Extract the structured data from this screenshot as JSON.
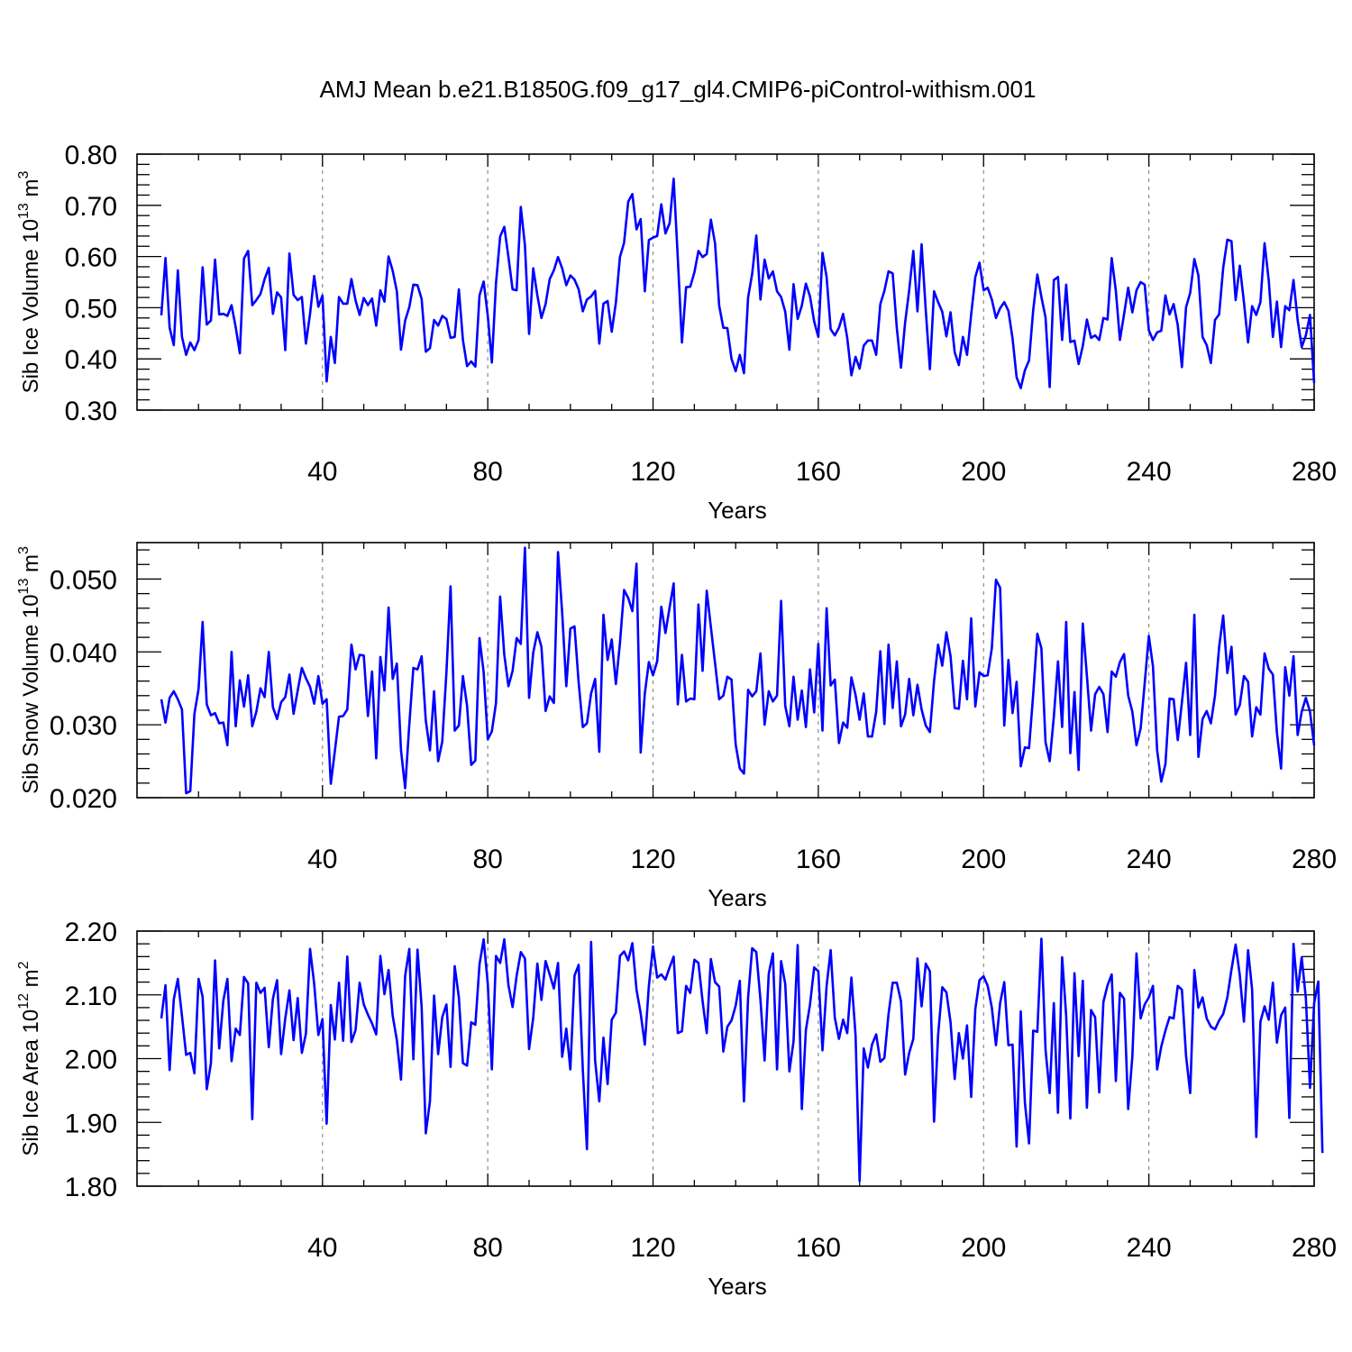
{
  "title": "AMJ Mean b.e21.B1850G.f09_g17_gl4.CMIP6-piControl-withism.001",
  "line_color": "#0000ff",
  "chart_data": [
    {
      "type": "line",
      "title": "AMJ Mean b.e21.B1850G.f09_g17_gl4.CMIP6-piControl-withism.001",
      "xlabel": "Years",
      "ylabel": {
        "text": "Sib Ice Volume 10",
        "exp": "13",
        "unit": " m",
        "unit_exp": "3"
      },
      "xlim": [
        1,
        280
      ],
      "ylim": [
        0.3,
        0.8
      ],
      "xticks": [
        40,
        80,
        120,
        160,
        200,
        240,
        280
      ],
      "yticks": [
        "0.30",
        "0.40",
        "0.50",
        "0.60",
        "0.70",
        "0.80"
      ],
      "grid": "vertical dashed at x ticks",
      "x_start": 1,
      "values": [
        0.485,
        0.597,
        0.461,
        0.427,
        0.573,
        0.443,
        0.408,
        0.432,
        0.417,
        0.437,
        0.579,
        0.467,
        0.475,
        0.594,
        0.487,
        0.488,
        0.484,
        0.505,
        0.462,
        0.411,
        0.596,
        0.611,
        0.505,
        0.515,
        0.527,
        0.556,
        0.578,
        0.488,
        0.53,
        0.52,
        0.417,
        0.606,
        0.525,
        0.515,
        0.521,
        0.43,
        0.488,
        0.562,
        0.502,
        0.524,
        0.356,
        0.443,
        0.392,
        0.521,
        0.508,
        0.508,
        0.556,
        0.514,
        0.486,
        0.519,
        0.505,
        0.518,
        0.465,
        0.534,
        0.512,
        0.6,
        0.572,
        0.532,
        0.418,
        0.475,
        0.501,
        0.545,
        0.544,
        0.517,
        0.414,
        0.421,
        0.476,
        0.465,
        0.484,
        0.478,
        0.441,
        0.443,
        0.536,
        0.437,
        0.386,
        0.395,
        0.385,
        0.524,
        0.551,
        0.484,
        0.393,
        0.548,
        0.639,
        0.658,
        0.599,
        0.536,
        0.534,
        0.697,
        0.622,
        0.449,
        0.577,
        0.524,
        0.48,
        0.507,
        0.556,
        0.573,
        0.599,
        0.577,
        0.544,
        0.563,
        0.555,
        0.536,
        0.493,
        0.516,
        0.522,
        0.533,
        0.43,
        0.508,
        0.513,
        0.453,
        0.51,
        0.599,
        0.627,
        0.707,
        0.722,
        0.653,
        0.673,
        0.532,
        0.632,
        0.637,
        0.64,
        0.702,
        0.645,
        0.665,
        0.752,
        0.597,
        0.432,
        0.54,
        0.541,
        0.569,
        0.611,
        0.599,
        0.605,
        0.672,
        0.626,
        0.504,
        0.461,
        0.46,
        0.4,
        0.376,
        0.408,
        0.372,
        0.52,
        0.566,
        0.641,
        0.516,
        0.594,
        0.557,
        0.571,
        0.532,
        0.521,
        0.492,
        0.418,
        0.546,
        0.478,
        0.504,
        0.547,
        0.522,
        0.473,
        0.443,
        0.607,
        0.56,
        0.458,
        0.446,
        0.461,
        0.488,
        0.441,
        0.368,
        0.404,
        0.381,
        0.426,
        0.436,
        0.436,
        0.408,
        0.507,
        0.533,
        0.571,
        0.567,
        0.46,
        0.383,
        0.471,
        0.534,
        0.611,
        0.493,
        0.624,
        0.495,
        0.38,
        0.532,
        0.511,
        0.492,
        0.444,
        0.491,
        0.413,
        0.388,
        0.443,
        0.408,
        0.487,
        0.56,
        0.588,
        0.534,
        0.539,
        0.516,
        0.48,
        0.499,
        0.511,
        0.494,
        0.44,
        0.364,
        0.343,
        0.378,
        0.397,
        0.495,
        0.565,
        0.521,
        0.481,
        0.345,
        0.554,
        0.56,
        0.437,
        0.545,
        0.433,
        0.436,
        0.39,
        0.425,
        0.477,
        0.441,
        0.446,
        0.437,
        0.48,
        0.477,
        0.597,
        0.533,
        0.437,
        0.487,
        0.539,
        0.491,
        0.534,
        0.55,
        0.545,
        0.456,
        0.437,
        0.452,
        0.455,
        0.524,
        0.487,
        0.507,
        0.466,
        0.384,
        0.501,
        0.529,
        0.595,
        0.563,
        0.443,
        0.427,
        0.392,
        0.476,
        0.487,
        0.578,
        0.633,
        0.63,
        0.515,
        0.582,
        0.511,
        0.432,
        0.503,
        0.486,
        0.511,
        0.626,
        0.554,
        0.443,
        0.512,
        0.423,
        0.503,
        0.495,
        0.554,
        0.476,
        0.423,
        0.446,
        0.486,
        0.353
      ]
    },
    {
      "type": "line",
      "xlabel": "Years",
      "ylabel": {
        "text": "Sib Snow Volume 10",
        "exp": "13",
        "unit": " m",
        "unit_exp": "3"
      },
      "xlim": [
        1,
        280
      ],
      "ylim": [
        0.02,
        0.055
      ],
      "xticks": [
        40,
        80,
        120,
        160,
        200,
        240,
        280
      ],
      "yticks": [
        "0.020",
        "0.030",
        "0.040",
        "0.050"
      ],
      "grid": "vertical dashed at x ticks",
      "x_start": 1,
      "values": [
        0.0335,
        0.0303,
        0.0337,
        0.0346,
        0.0335,
        0.0321,
        0.0206,
        0.0209,
        0.0315,
        0.0349,
        0.0441,
        0.0328,
        0.0313,
        0.0316,
        0.0302,
        0.0303,
        0.0272,
        0.04,
        0.0298,
        0.0361,
        0.0325,
        0.0368,
        0.0298,
        0.0318,
        0.035,
        0.0338,
        0.04,
        0.0324,
        0.0308,
        0.0331,
        0.0338,
        0.0369,
        0.0315,
        0.0347,
        0.0378,
        0.0364,
        0.0352,
        0.0329,
        0.0367,
        0.0329,
        0.0335,
        0.0219,
        0.0264,
        0.0311,
        0.0312,
        0.0321,
        0.041,
        0.0376,
        0.0396,
        0.0395,
        0.0312,
        0.0373,
        0.0254,
        0.0393,
        0.0347,
        0.0461,
        0.0363,
        0.0384,
        0.0265,
        0.0213,
        0.03,
        0.0378,
        0.0376,
        0.0394,
        0.0306,
        0.0265,
        0.0346,
        0.025,
        0.0277,
        0.0372,
        0.049,
        0.0292,
        0.0299,
        0.0367,
        0.0326,
        0.0245,
        0.0251,
        0.0419,
        0.0372,
        0.028,
        0.0291,
        0.033,
        0.0476,
        0.0396,
        0.0353,
        0.0374,
        0.0419,
        0.0411,
        0.0543,
        0.0337,
        0.0399,
        0.0427,
        0.0407,
        0.0319,
        0.0339,
        0.033,
        0.0537,
        0.0454,
        0.0353,
        0.0432,
        0.0435,
        0.0358,
        0.0297,
        0.0302,
        0.0343,
        0.0363,
        0.0263,
        0.0451,
        0.0389,
        0.0417,
        0.0356,
        0.0412,
        0.0485,
        0.0474,
        0.0456,
        0.0521,
        0.0262,
        0.0343,
        0.0386,
        0.0368,
        0.0387,
        0.0462,
        0.0426,
        0.0461,
        0.0494,
        0.0328,
        0.0396,
        0.0332,
        0.0336,
        0.0335,
        0.0465,
        0.0374,
        0.0484,
        0.0434,
        0.0385,
        0.0335,
        0.034,
        0.0366,
        0.0362,
        0.0273,
        0.024,
        0.0233,
        0.0348,
        0.0339,
        0.0346,
        0.0398,
        0.03,
        0.0346,
        0.0332,
        0.034,
        0.047,
        0.0326,
        0.0298,
        0.0366,
        0.0307,
        0.0347,
        0.0297,
        0.0376,
        0.0317,
        0.0411,
        0.0292,
        0.046,
        0.0354,
        0.0362,
        0.0275,
        0.0303,
        0.0296,
        0.0365,
        0.0341,
        0.0307,
        0.0343,
        0.0284,
        0.0284,
        0.0318,
        0.0401,
        0.0301,
        0.041,
        0.0323,
        0.0387,
        0.0298,
        0.0314,
        0.0363,
        0.0313,
        0.0355,
        0.0321,
        0.0299,
        0.029,
        0.036,
        0.041,
        0.0381,
        0.0427,
        0.0394,
        0.0323,
        0.0322,
        0.0388,
        0.0335,
        0.0446,
        0.0325,
        0.0372,
        0.0367,
        0.0368,
        0.0405,
        0.0499,
        0.0488,
        0.0299,
        0.0389,
        0.0316,
        0.0359,
        0.0243,
        0.0269,
        0.0268,
        0.0342,
        0.0425,
        0.0405,
        0.0276,
        0.025,
        0.0311,
        0.0387,
        0.0297,
        0.0441,
        0.0261,
        0.0345,
        0.0238,
        0.0439,
        0.0367,
        0.0292,
        0.0342,
        0.0352,
        0.0342,
        0.029,
        0.0373,
        0.0366,
        0.0386,
        0.0397,
        0.034,
        0.0318,
        0.0272,
        0.0295,
        0.0357,
        0.0422,
        0.038,
        0.0265,
        0.0222,
        0.0246,
        0.0336,
        0.0335,
        0.0279,
        0.0331,
        0.0385,
        0.0286,
        0.0451,
        0.0256,
        0.0308,
        0.0319,
        0.0302,
        0.034,
        0.0407,
        0.045,
        0.0371,
        0.0407,
        0.0314,
        0.0327,
        0.0367,
        0.0359,
        0.0284,
        0.0324,
        0.0314,
        0.0398,
        0.0377,
        0.0369,
        0.0289,
        0.024,
        0.0379,
        0.034,
        0.0394,
        0.0286,
        0.0318,
        0.0337,
        0.0318,
        0.0272
      ]
    },
    {
      "type": "line",
      "xlabel": "Years",
      "ylabel": {
        "text": "Sib Ice Area 10",
        "exp": "12",
        "unit": " m",
        "unit_exp": "2"
      },
      "xlim": [
        1,
        280
      ],
      "ylim": [
        1.8,
        2.2
      ],
      "xticks": [
        40,
        80,
        120,
        160,
        200,
        240,
        280
      ],
      "yticks": [
        "1.80",
        "1.90",
        "2.00",
        "2.10",
        "2.20"
      ],
      "grid": "vertical dashed at x ticks",
      "x_start": 1,
      "values": [
        2.063,
        2.115,
        1.982,
        2.093,
        2.125,
        2.067,
        2.006,
        2.009,
        1.977,
        2.125,
        2.097,
        1.952,
        1.993,
        2.154,
        2.016,
        2.091,
        2.125,
        1.996,
        2.047,
        2.037,
        2.128,
        2.118,
        1.905,
        2.119,
        2.103,
        2.111,
        2.018,
        2.094,
        2.123,
        2.007,
        2.063,
        2.107,
        2.029,
        2.095,
        2.009,
        2.039,
        2.172,
        2.117,
        2.037,
        2.062,
        1.898,
        2.084,
        2.03,
        2.119,
        2.028,
        2.16,
        2.026,
        2.045,
        2.119,
        2.085,
        2.069,
        2.055,
        2.038,
        2.161,
        2.101,
        2.139,
        2.067,
        2.029,
        1.967,
        2.13,
        2.172,
        1.999,
        2.171,
        2.081,
        1.883,
        1.933,
        2.099,
        2.007,
        2.065,
        2.085,
        1.987,
        2.145,
        2.096,
        1.993,
        1.989,
        2.057,
        2.053,
        2.148,
        2.187,
        2.117,
        1.983,
        2.161,
        2.15,
        2.187,
        2.115,
        2.081,
        2.13,
        2.167,
        2.157,
        2.015,
        2.064,
        2.149,
        2.092,
        2.153,
        2.132,
        2.11,
        2.15,
        2.003,
        2.047,
        1.983,
        2.13,
        2.147,
        1.983,
        1.858,
        2.183,
        1.996,
        1.933,
        2.033,
        1.96,
        2.061,
        2.072,
        2.161,
        2.168,
        2.154,
        2.181,
        2.108,
        2.071,
        2.022,
        2.114,
        2.176,
        2.127,
        2.132,
        2.124,
        2.143,
        2.16,
        2.04,
        2.043,
        2.114,
        2.103,
        2.155,
        2.15,
        2.09,
        2.04,
        2.156,
        2.12,
        2.113,
        2.011,
        2.05,
        2.06,
        2.083,
        2.122,
        1.933,
        2.096,
        2.173,
        2.167,
        2.092,
        1.997,
        2.133,
        2.165,
        1.983,
        2.153,
        2.117,
        1.98,
        2.027,
        2.178,
        1.921,
        2.045,
        2.085,
        2.143,
        2.137,
        2.013,
        2.114,
        2.17,
        2.064,
        2.031,
        2.061,
        2.04,
        2.127,
        2.037,
        1.808,
        2.016,
        1.986,
        2.022,
        2.038,
        1.995,
        2.001,
        2.07,
        2.119,
        2.119,
        2.09,
        1.975,
        2.009,
        2.031,
        2.157,
        2.082,
        2.149,
        2.137,
        1.901,
        2.037,
        2.112,
        2.104,
        2.057,
        1.968,
        2.04,
        2.0,
        2.052,
        1.94,
        2.078,
        2.123,
        2.129,
        2.114,
        2.08,
        2.021,
        2.087,
        2.12,
        2.021,
        2.022,
        1.862,
        2.074,
        1.931,
        1.867,
        2.044,
        2.042,
        2.188,
        2.014,
        1.946,
        2.087,
        1.915,
        2.159,
        2.067,
        1.906,
        2.134,
        2.004,
        2.122,
        1.923,
        2.076,
        2.065,
        1.947,
        2.089,
        2.115,
        2.132,
        1.965,
        2.103,
        2.094,
        1.921,
        2.003,
        2.165,
        2.063,
        2.085,
        2.096,
        2.114,
        1.983,
        2.019,
        2.044,
        2.065,
        2.063,
        2.114,
        2.108,
        2.004,
        1.946,
        2.139,
        2.08,
        2.096,
        2.063,
        2.05,
        2.046,
        2.06,
        2.07,
        2.096,
        2.14,
        2.179,
        2.131,
        2.058,
        2.17,
        2.108,
        1.877,
        2.058,
        2.082,
        2.061,
        2.119,
        2.025,
        2.068,
        2.08,
        1.907,
        2.18,
        2.105,
        2.159,
        2.095,
        1.954,
        2.087,
        2.121,
        1.852
      ]
    }
  ]
}
